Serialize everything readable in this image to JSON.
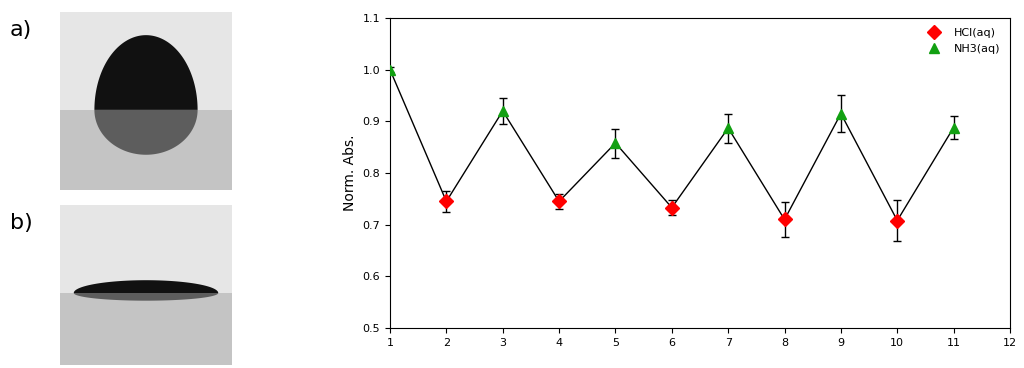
{
  "chart_data": {
    "type": "line",
    "ylabel": "Norm. Abs.",
    "color": "#000000",
    "series": [
      {
        "name": "HCl(aq)",
        "color": "#ff0000",
        "marker": "diamond",
        "x": [
          2,
          4,
          6,
          8,
          10
        ],
        "values": [
          0.745,
          0.745,
          0.733,
          0.71,
          0.708
        ],
        "errors": [
          0.02,
          0.015,
          0.015,
          0.033,
          0.04
        ]
      },
      {
        "name": "NH3(aq)",
        "color": "#12a012",
        "marker": "triangle",
        "x": [
          1,
          3,
          5,
          7,
          9,
          11
        ],
        "values": [
          1.0,
          0.92,
          0.858,
          0.887,
          0.915,
          0.888
        ],
        "errors": [
          0.005,
          0.025,
          0.028,
          0.028,
          0.035,
          0.022
        ]
      }
    ],
    "xlim": [
      1,
      12
    ],
    "xticks": [
      1,
      2,
      3,
      4,
      5,
      6,
      7,
      8,
      9,
      10,
      11,
      12
    ],
    "ylim": [
      0.5,
      1.1
    ],
    "yticks": [
      0.5,
      0.6,
      0.7,
      0.8,
      0.9,
      1.0,
      1.1
    ],
    "legend": "upper right"
  },
  "panels": [
    {
      "label": "a)"
    },
    {
      "label": "b)"
    }
  ]
}
